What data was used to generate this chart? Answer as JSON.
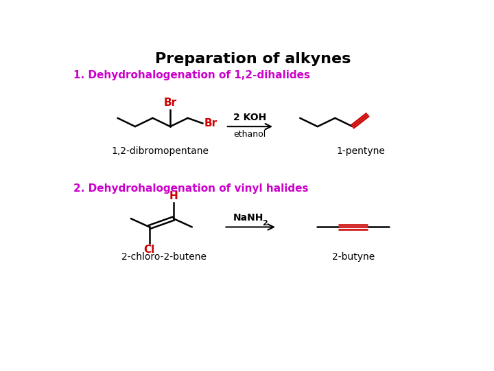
{
  "title": "Preparation of alkynes",
  "title_fontsize": 16,
  "title_color": "#000000",
  "title_fontweight": "bold",
  "bg_color": "#ffffff",
  "section1_label": "1. Dehydrohalogenation of 1,2-dihalides",
  "section2_label": "2. Dehydrohalogenation of vinyl halides",
  "section_color": "#cc00cc",
  "section_fontsize": 11,
  "section_fontweight": "bold",
  "label1_reactant": "1,2-dibromopentane",
  "label1_product": "1-pentyne",
  "label2_reactant": "2-chloro-2-butene",
  "label2_product": "2-butyne",
  "reagent1_line1": "2 KOH",
  "reagent1_line2": "ethanol",
  "reagent2": "NaNH",
  "reagent2_sub": "2",
  "bond_color": "#000000",
  "halogen_color": "#cc0000",
  "triple_bond_color": "#cc0000",
  "arrow_color": "#000000",
  "label_fontsize": 10
}
